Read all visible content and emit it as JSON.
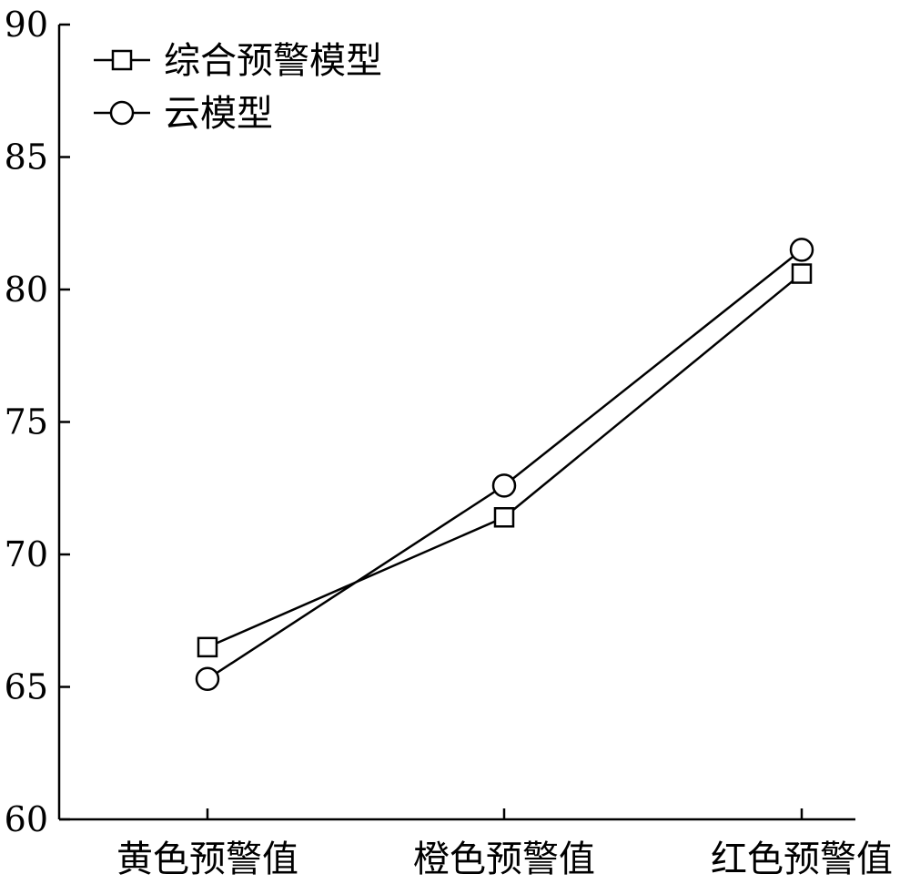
{
  "chart_data": {
    "type": "line",
    "title": "",
    "xlabel": "",
    "ylabel": "",
    "categories": [
      "黄色预警值",
      "橙色预警值",
      "红色预警值"
    ],
    "ylim": [
      60,
      90
    ],
    "yticks": [
      "60",
      "65",
      "70",
      "75",
      "80",
      "85",
      "90"
    ],
    "grid": false,
    "legend_position": "top-left",
    "series": [
      {
        "name": "综合预警模型",
        "marker": "square",
        "values": [
          66.5,
          71.4,
          80.6
        ]
      },
      {
        "name": "云模型",
        "marker": "circle",
        "values": [
          65.3,
          72.6,
          81.5
        ]
      }
    ],
    "colors": {
      "line": "#000000",
      "marker_fill": "#ffffff"
    }
  }
}
